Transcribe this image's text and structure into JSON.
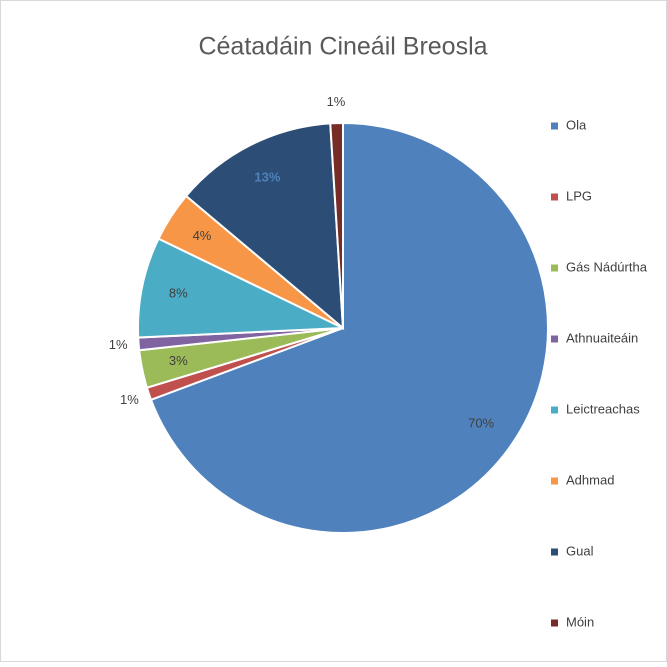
{
  "chart_data": {
    "type": "pie",
    "title": "Céatadáin Cineáil Breosla",
    "categories": [
      "Ola",
      "LPG",
      "Gás Nádúrtha",
      "Athnuaiteáin",
      "Leictreachas",
      "Adhmad",
      "Gual",
      "Móin"
    ],
    "values": [
      70,
      1,
      3,
      1,
      8,
      4,
      13,
      1
    ],
    "value_labels": [
      "70%",
      "1%",
      "3%",
      "1%",
      "8%",
      "4%",
      "13%",
      "1%"
    ],
    "colors": [
      "#4f81bd",
      "#c0504d",
      "#9bbb59",
      "#8064a2",
      "#4bacc6",
      "#f79646",
      "#2c4d75",
      "#772c2a"
    ],
    "legend": "right"
  }
}
